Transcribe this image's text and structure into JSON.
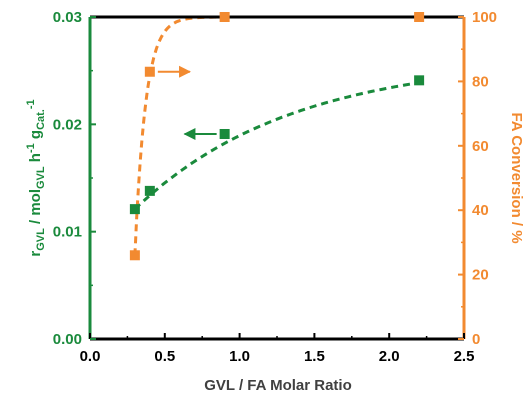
{
  "chart_data": {
    "type": "scatter",
    "xlabel": "GVL / FA Molar Ratio",
    "ylabel_left": {
      "main": "r",
      "sub1": "GVL",
      "mid1": " / mol",
      "sub2": "GVL",
      "mid2": " h",
      "sup1": "-1",
      "mid3": " g",
      "sub3": "Cat.",
      "sup2": "-1"
    },
    "ylabel_right": "FA Conversion / %",
    "xlim": [
      0,
      2.5
    ],
    "ylim_left": [
      0,
      0.03
    ],
    "ylim_right": [
      0,
      100
    ],
    "x_ticks": [
      "0.0",
      "0.5",
      "1.0",
      "1.5",
      "2.0",
      "2.5"
    ],
    "y_left_ticks": [
      "0.00",
      "0.01",
      "0.02",
      "0.03"
    ],
    "y_right_ticks": [
      "0",
      "20",
      "40",
      "60",
      "80",
      "100"
    ],
    "colors": {
      "left_series": "#1a8a3c",
      "right_series": "#f28a30",
      "frame": "#000000"
    },
    "series": [
      {
        "axis": "left",
        "marker": "square",
        "x": [
          0.3,
          0.4,
          0.9,
          2.2
        ],
        "y": [
          0.0121,
          0.0138,
          0.0191,
          0.0241
        ]
      },
      {
        "axis": "right",
        "marker": "square",
        "x": [
          0.3,
          0.4,
          0.9,
          2.2
        ],
        "y": [
          26,
          83,
          100,
          100
        ]
      }
    ],
    "annotations": [
      {
        "type": "arrow",
        "direction": "left",
        "points_to_axis": "left",
        "x": 0.9,
        "y": 0.0191
      },
      {
        "type": "arrow",
        "direction": "right",
        "points_to_axis": "right",
        "x": 0.4,
        "y": 83
      }
    ]
  }
}
